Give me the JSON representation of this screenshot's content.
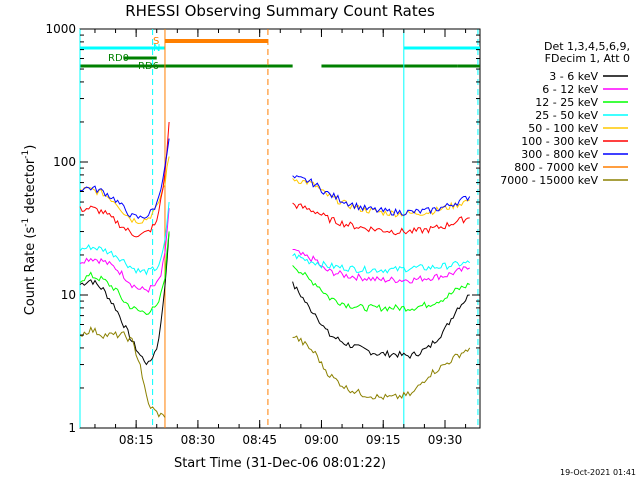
{
  "chart_data": {
    "type": "line",
    "title": "RHESSI Observing Summary Count Rates",
    "xlabel": "Start Time (31-Dec-06 08:01:22)",
    "ylabel": "Count Rate (s",
    "ylabel_sup1": "-1",
    "ylabel_mid": " detector",
    "ylabel_sup2": "-1",
    "ylabel_end": ")",
    "yscale": "log",
    "ylim": [
      1,
      1000
    ],
    "xlim": [
      "08:01:22",
      "09:38:30"
    ],
    "x_ticks": [
      "08:15",
      "08:30",
      "08:45",
      "09:00",
      "09:15",
      "09:30"
    ],
    "y_ticks": [
      "1",
      "10",
      "100",
      "1000"
    ],
    "legend": {
      "header": [
        "Det 1,3,4,5,6,9,",
        "FDecim 1, Att 0"
      ],
      "placement": "right"
    },
    "series": [
      {
        "name": "3 - 6 keV",
        "color": "#000000",
        "segments": [
          [
            [
              "08:01:22",
              12
            ],
            [
              "08:04",
              13
            ],
            [
              "08:07",
              11
            ],
            [
              "08:10",
              8
            ],
            [
              "08:12",
              6
            ],
            [
              "08:14",
              4.5
            ],
            [
              "08:16",
              3.5
            ],
            [
              "08:18",
              3
            ],
            [
              "08:20",
              4
            ],
            [
              "08:21",
              6
            ],
            [
              "08:22",
              12
            ],
            [
              "08:23",
              30
            ]
          ],
          [
            [
              "08:53",
              12
            ],
            [
              "08:55",
              10
            ],
            [
              "08:57",
              8
            ],
            [
              "08:59",
              7
            ],
            [
              "09:00",
              6
            ],
            [
              "09:02",
              5
            ],
            [
              "09:06",
              4.3
            ],
            [
              "09:10",
              3.9
            ],
            [
              "09:14",
              3.6
            ],
            [
              "09:18",
              3.6
            ],
            [
              "09:20",
              3.5
            ],
            [
              "09:22",
              3.5
            ],
            [
              "09:26",
              4
            ],
            [
              "09:30",
              5.5
            ],
            [
              "09:33",
              8
            ],
            [
              "09:36",
              10
            ]
          ]
        ]
      },
      {
        "name": "6 - 12 keV",
        "color": "#ff00ff",
        "segments": [
          [
            [
              "08:01:22",
              18
            ],
            [
              "08:04",
              19
            ],
            [
              "08:07",
              18
            ],
            [
              "08:10",
              16
            ],
            [
              "08:12",
              14
            ],
            [
              "08:14",
              12
            ],
            [
              "08:16",
              11
            ],
            [
              "08:18",
              11
            ],
            [
              "08:20",
              12
            ],
            [
              "08:21",
              14
            ],
            [
              "08:22",
              20
            ],
            [
              "08:23",
              45
            ]
          ],
          [
            [
              "08:53",
              22
            ],
            [
              "08:55",
              20
            ],
            [
              "08:57",
              19
            ],
            [
              "08:59",
              18
            ],
            [
              "09:00",
              16
            ],
            [
              "09:02",
              15
            ],
            [
              "09:06",
              14
            ],
            [
              "09:10",
              13.5
            ],
            [
              "09:14",
              13
            ],
            [
              "09:18",
              13
            ],
            [
              "09:22",
              13
            ],
            [
              "09:26",
              13.5
            ],
            [
              "09:30",
              14
            ],
            [
              "09:33",
              15
            ],
            [
              "09:36",
              16
            ]
          ]
        ]
      },
      {
        "name": "12 - 25 keV",
        "color": "#00ff00",
        "segments": [
          [
            [
              "08:01:22",
              13
            ],
            [
              "08:04",
              14
            ],
            [
              "08:07",
              13
            ],
            [
              "08:10",
              11
            ],
            [
              "08:12",
              9
            ],
            [
              "08:14",
              8
            ],
            [
              "08:16",
              7.5
            ],
            [
              "08:18",
              7.5
            ],
            [
              "08:20",
              8
            ],
            [
              "08:21",
              10
            ],
            [
              "08:22",
              14
            ],
            [
              "08:23",
              30
            ]
          ],
          [
            [
              "08:53",
              17
            ],
            [
              "08:55",
              15
            ],
            [
              "08:57",
              13
            ],
            [
              "08:59",
              12
            ],
            [
              "09:00",
              11
            ],
            [
              "09:02",
              9.5
            ],
            [
              "09:06",
              8.5
            ],
            [
              "09:10",
              8
            ],
            [
              "09:14",
              8
            ],
            [
              "09:18",
              8
            ],
            [
              "09:22",
              8
            ],
            [
              "09:26",
              8.5
            ],
            [
              "09:30",
              9.5
            ],
            [
              "09:33",
              11
            ],
            [
              "09:36",
              12
            ]
          ]
        ]
      },
      {
        "name": "25 - 50 keV",
        "color": "#00ffff",
        "segments": [
          [
            [
              "08:01:22",
              22
            ],
            [
              "08:04",
              23
            ],
            [
              "08:07",
              22
            ],
            [
              "08:10",
              20
            ],
            [
              "08:12",
              18
            ],
            [
              "08:14",
              16
            ],
            [
              "08:16",
              15
            ],
            [
              "08:18",
              15
            ],
            [
              "08:20",
              16
            ],
            [
              "08:21",
              18
            ],
            [
              "08:22",
              25
            ],
            [
              "08:23",
              50
            ]
          ],
          [
            [
              "08:53",
              20
            ],
            [
              "08:55",
              19
            ],
            [
              "08:57",
              18
            ],
            [
              "08:59",
              17.5
            ],
            [
              "09:00",
              17
            ],
            [
              "09:02",
              16.5
            ],
            [
              "09:06",
              16
            ],
            [
              "09:10",
              15.5
            ],
            [
              "09:14",
              15.5
            ],
            [
              "09:18",
              15.5
            ],
            [
              "09:22",
              16
            ],
            [
              "09:26",
              16
            ],
            [
              "09:30",
              16.5
            ],
            [
              "09:33",
              17
            ],
            [
              "09:36",
              17.5
            ]
          ]
        ]
      },
      {
        "name": "50 - 100 keV",
        "color": "#ffc800",
        "segments": [
          [
            [
              "08:01:22",
              62
            ],
            [
              "08:04",
              62
            ],
            [
              "08:07",
              58
            ],
            [
              "08:10",
              50
            ],
            [
              "08:12",
              42
            ],
            [
              "08:14",
              37
            ],
            [
              "08:16",
              36
            ],
            [
              "08:18",
              38
            ],
            [
              "08:20",
              45
            ],
            [
              "08:22",
              70
            ],
            [
              "08:23",
              110
            ]
          ],
          [
            [
              "08:53",
              75
            ],
            [
              "08:55",
              72
            ],
            [
              "08:57",
              70
            ],
            [
              "08:59",
              65
            ],
            [
              "09:00",
              60
            ],
            [
              "09:02",
              55
            ],
            [
              "09:06",
              48
            ],
            [
              "09:10",
              44
            ],
            [
              "09:14",
              42
            ],
            [
              "09:18",
              41
            ],
            [
              "09:22",
              41
            ],
            [
              "09:26",
              42
            ],
            [
              "09:30",
              45
            ],
            [
              "09:33",
              48
            ],
            [
              "09:36",
              52
            ]
          ]
        ]
      },
      {
        "name": "100 - 300 keV",
        "color": "#ff0000",
        "segments": [
          [
            [
              "08:01:22",
              44
            ],
            [
              "08:04",
              45
            ],
            [
              "08:07",
              42
            ],
            [
              "08:10",
              36
            ],
            [
              "08:12",
              32
            ],
            [
              "08:14",
              29
            ],
            [
              "08:16",
              28
            ],
            [
              "08:18",
              30
            ],
            [
              "08:20",
              35
            ],
            [
              "08:22",
              80
            ],
            [
              "08:23",
              200
            ]
          ],
          [
            [
              "08:53",
              48
            ],
            [
              "08:55",
              46
            ],
            [
              "08:57",
              44
            ],
            [
              "08:59",
              42
            ],
            [
              "09:00",
              40
            ],
            [
              "09:02",
              37
            ],
            [
              "09:06",
              34
            ],
            [
              "09:10",
              32
            ],
            [
              "09:14",
              31
            ],
            [
              "09:18",
              30
            ],
            [
              "09:22",
              30
            ],
            [
              "09:26",
              31
            ],
            [
              "09:30",
              33
            ],
            [
              "09:33",
              36
            ],
            [
              "09:36",
              38
            ]
          ]
        ]
      },
      {
        "name": "300 - 800 keV",
        "color": "#0000ff",
        "segments": [
          [
            [
              "08:01:22",
              63
            ],
            [
              "08:04",
              64
            ],
            [
              "08:07",
              60
            ],
            [
              "08:10",
              52
            ],
            [
              "08:12",
              45
            ],
            [
              "08:14",
              39
            ],
            [
              "08:16",
              38
            ],
            [
              "08:18",
              40
            ],
            [
              "08:20",
              48
            ],
            [
              "08:22",
              90
            ],
            [
              "08:23",
              150
            ]
          ],
          [
            [
              "08:53",
              76
            ],
            [
              "08:55",
              74
            ],
            [
              "08:57",
              72
            ],
            [
              "08:59",
              66
            ],
            [
              "09:00",
              62
            ],
            [
              "09:02",
              57
            ],
            [
              "09:06",
              50
            ],
            [
              "09:10",
              45
            ],
            [
              "09:14",
              43
            ],
            [
              "09:18",
              42
            ],
            [
              "09:22",
              42
            ],
            [
              "09:26",
              43
            ],
            [
              "09:30",
              46
            ],
            [
              "09:33",
              50
            ],
            [
              "09:36",
              55
            ]
          ]
        ]
      },
      {
        "name": "800 - 7000 keV",
        "color": "#ff7f00",
        "segments": []
      },
      {
        "name": "7000 - 15000 keV",
        "color": "#8b8000",
        "segments": [
          [
            [
              "08:01:22",
              5
            ],
            [
              "08:04",
              5.5
            ],
            [
              "08:07",
              5
            ],
            [
              "08:10",
              5
            ],
            [
              "08:12",
              5
            ],
            [
              "08:14",
              4.5
            ],
            [
              "08:16",
              3
            ],
            [
              "08:17",
              2
            ],
            [
              "08:18",
              1.5
            ],
            [
              "08:20",
              1.3
            ],
            [
              "08:22",
              1.2
            ]
          ],
          [
            [
              "08:53",
              5
            ],
            [
              "08:55",
              4.5
            ],
            [
              "08:57",
              4
            ],
            [
              "08:59",
              3.5
            ],
            [
              "09:00",
              3
            ],
            [
              "09:02",
              2.5
            ],
            [
              "09:06",
              2
            ],
            [
              "09:10",
              1.8
            ],
            [
              "09:14",
              1.7
            ],
            [
              "09:18",
              1.7
            ],
            [
              "09:22",
              1.8
            ],
            [
              "09:26",
              2.5
            ],
            [
              "09:30",
              3
            ],
            [
              "09:33",
              3.5
            ],
            [
              "09:36",
              4
            ]
          ]
        ]
      }
    ],
    "flags": [
      {
        "label": "S",
        "color": "#ff7f00",
        "start": "08:22",
        "end": "08:47"
      },
      {
        "label": "N",
        "color": "#00ffff",
        "start": "08:22",
        "end": "08:22"
      },
      {
        "label": "",
        "color": "#00ffff",
        "start": "08:01:22",
        "end": "08:22"
      },
      {
        "label": "",
        "color": "#00ffff",
        "start": "09:20",
        "end": "09:38:30"
      },
      {
        "label": "RD0",
        "color": "#008000",
        "start": "08:12",
        "end": "08:20"
      },
      {
        "label": "RD6",
        "color": "#008000",
        "start": "08:01:22",
        "end": "08:47"
      },
      {
        "label": "",
        "color": "#008000",
        "start": "08:47",
        "end": "08:53"
      },
      {
        "label": "",
        "color": "#008000",
        "start": "09:00",
        "end": "09:33"
      },
      {
        "label": "",
        "color": "#008000",
        "start": "09:33",
        "end": "09:38:30"
      }
    ],
    "vlines": [
      {
        "time": "08:01:22",
        "color": "#00ffff",
        "dashed": false
      },
      {
        "time": "08:19",
        "color": "#00ffff",
        "dashed": true
      },
      {
        "time": "08:22",
        "color": "#ff7f00",
        "dashed": false
      },
      {
        "time": "08:47",
        "color": "#ff7f00",
        "dashed": true
      },
      {
        "time": "09:20",
        "color": "#00ffff",
        "dashed": false
      },
      {
        "time": "09:38",
        "color": "#00ffff",
        "dashed": true
      }
    ]
  },
  "footer": {
    "timestamp": "19-Oct-2021 01:41"
  }
}
